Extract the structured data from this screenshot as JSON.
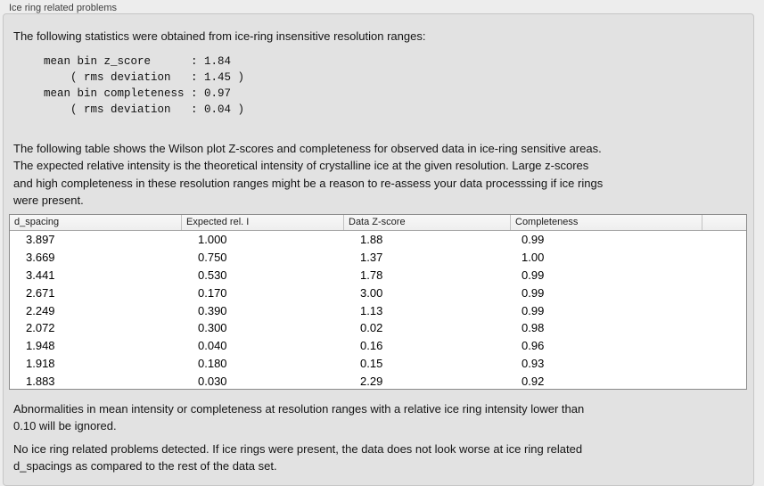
{
  "panel": {
    "title": "Ice ring related problems"
  },
  "intro_text": "The following statistics were obtained from ice-ring insensitive resolution ranges:",
  "stats_block": "mean bin z_score      : 1.84\n    ( rms deviation   : 1.45 )\nmean bin completeness : 0.97\n    ( rms deviation   : 0.04 )",
  "stats": {
    "mean_bin_z_score": "1.84",
    "z_score_rms_deviation": "1.45",
    "mean_bin_completeness": "0.97",
    "completeness_rms_deviation": "0.04"
  },
  "table_description": "The following table shows the Wilson plot Z-scores and completeness for observed data in ice-ring sensitive areas.\nThe expected relative intensity is the theoretical intensity of crystalline ice at the given resolution. Large z-scores\nand high completeness in these resolution ranges might be a reason to re-assess your data processsing if ice rings\nwere present.",
  "table": {
    "columns": [
      "d_spacing",
      "Expected rel. I",
      "Data Z-score",
      "Completeness",
      ""
    ],
    "rows": [
      [
        "3.897",
        "1.000",
        "1.88",
        "0.99"
      ],
      [
        "3.669",
        "0.750",
        "1.37",
        "1.00"
      ],
      [
        "3.441",
        "0.530",
        "1.78",
        "0.99"
      ],
      [
        "2.671",
        "0.170",
        "3.00",
        "0.99"
      ],
      [
        "2.249",
        "0.390",
        "1.13",
        "0.99"
      ],
      [
        "2.072",
        "0.300",
        "0.02",
        "0.98"
      ],
      [
        "1.948",
        "0.040",
        "0.16",
        "0.96"
      ],
      [
        "1.918",
        "0.180",
        "0.15",
        "0.93"
      ],
      [
        "1.883",
        "0.030",
        "2.29",
        "0.92"
      ]
    ]
  },
  "note_text": "Abnormalities in mean intensity or completeness at resolution ranges with a relative ice ring intensity lower than\n0.10 will be ignored.",
  "conclusion_text": "No ice ring related problems detected. If ice rings were present, the data does not look worse at ice ring related\nd_spacings as compared to the rest of the data set."
}
